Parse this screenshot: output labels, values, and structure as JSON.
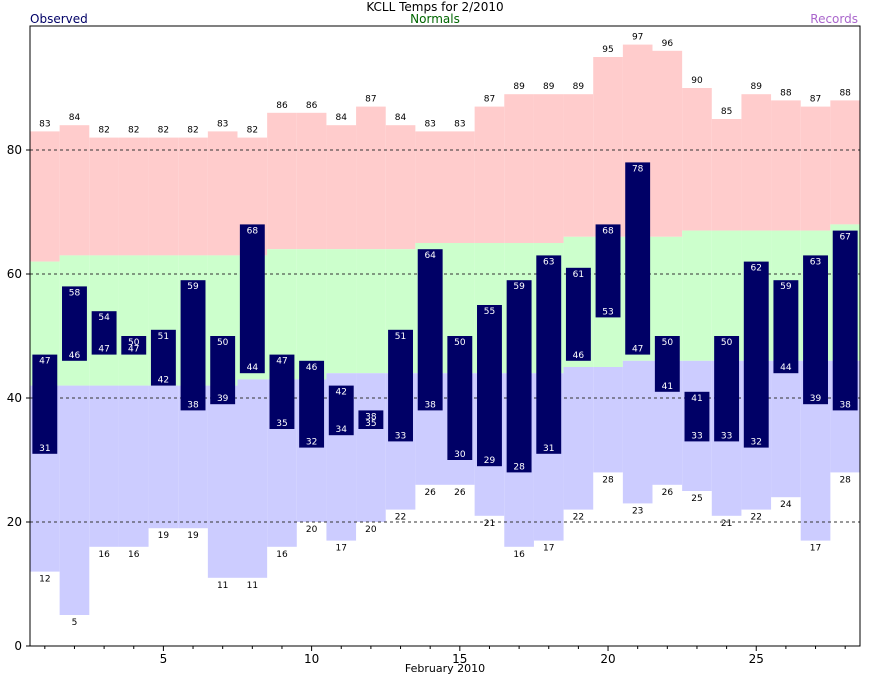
{
  "chart_data": {
    "type": "bar",
    "title": "KCLL Temps for 2/2010",
    "subtitle": "Normals",
    "legend_left": "Observed",
    "legend_right": "Records",
    "xlabel": "February 2010",
    "ylim": [
      0,
      100
    ],
    "yticks": [
      0,
      20,
      40,
      60,
      80
    ],
    "xticks": [
      5,
      10,
      15,
      20,
      25
    ],
    "xlim": [
      0.5,
      28.5
    ],
    "grid": "dashed horizontal lines at 20, 40, 60, 80",
    "days": [
      1,
      2,
      3,
      4,
      5,
      6,
      7,
      8,
      9,
      10,
      11,
      12,
      13,
      14,
      15,
      16,
      17,
      18,
      19,
      20,
      21,
      22,
      23,
      24,
      25,
      26,
      27,
      28
    ],
    "record_high": [
      83,
      84,
      82,
      82,
      82,
      82,
      83,
      82,
      86,
      86,
      84,
      87,
      84,
      83,
      83,
      87,
      89,
      89,
      89,
      95,
      97,
      96,
      90,
      85,
      89,
      88,
      87,
      88
    ],
    "record_low": [
      12,
      5,
      16,
      16,
      19,
      19,
      11,
      11,
      16,
      20,
      17,
      20,
      22,
      26,
      26,
      21,
      16,
      17,
      22,
      28,
      23,
      26,
      25,
      21,
      22,
      24,
      17,
      28
    ],
    "normal_high": [
      62,
      63,
      63,
      63,
      63,
      63,
      63,
      63,
      64,
      64,
      64,
      64,
      64,
      65,
      65,
      65,
      65,
      65,
      66,
      66,
      66,
      66,
      67,
      67,
      67,
      67,
      67,
      68
    ],
    "normal_low": [
      42,
      42,
      42,
      42,
      42,
      42,
      42,
      43,
      43,
      43,
      44,
      44,
      44,
      44,
      44,
      44,
      44,
      44,
      45,
      45,
      46,
      46,
      46,
      46,
      46,
      46,
      46,
      46
    ],
    "observed_high": [
      47,
      58,
      54,
      50,
      51,
      59,
      50,
      68,
      47,
      46,
      42,
      38,
      51,
      64,
      50,
      55,
      59,
      63,
      61,
      68,
      78,
      50,
      41,
      50,
      62,
      59,
      63,
      67
    ],
    "observed_low": [
      31,
      46,
      47,
      47,
      42,
      38,
      39,
      44,
      35,
      32,
      34,
      35,
      33,
      38,
      30,
      29,
      28,
      31,
      46,
      53,
      47,
      41,
      33,
      33,
      32,
      44,
      39,
      38
    ]
  },
  "colors": {
    "observed": "#000066",
    "observed_label": "#ffffff",
    "record_high_fill": "#ffcccc",
    "record_low_fill": "#ccccff",
    "normal_fill": "#ccffcc",
    "normals_text": "#006600",
    "records_text": "#aa66cc",
    "grid": "#333333"
  }
}
